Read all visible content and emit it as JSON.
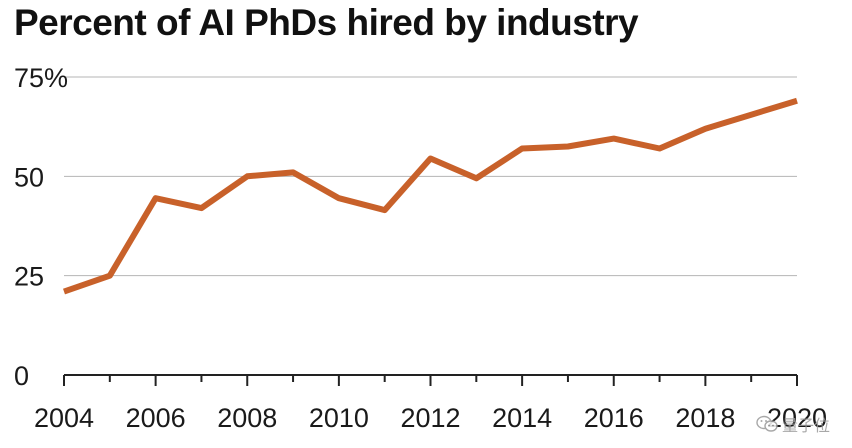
{
  "chart_data": {
    "type": "line",
    "title": "Percent of AI PhDs hired by industry",
    "xlabel": "",
    "ylabel": "",
    "x": [
      2004,
      2005,
      2006,
      2007,
      2008,
      2009,
      2010,
      2011,
      2012,
      2013,
      2014,
      2015,
      2016,
      2017,
      2018,
      2019,
      2020
    ],
    "series": [
      {
        "values": [
          21,
          25,
          44.5,
          42,
          50,
          51,
          44.5,
          41.5,
          54.5,
          49.5,
          57,
          57.5,
          59.5,
          57,
          62,
          65.5,
          69
        ]
      }
    ],
    "xlim": [
      2004,
      2020
    ],
    "ylim": [
      0,
      75
    ],
    "x_ticks": [
      "2004",
      "2006",
      "2008",
      "2010",
      "2012",
      "2014",
      "2016",
      "2018",
      "2020"
    ],
    "y_ticks": [
      {
        "value": 75,
        "label": "75%"
      },
      {
        "value": 50,
        "label": "50"
      },
      {
        "value": 25,
        "label": "25"
      },
      {
        "value": 0,
        "label": "0"
      }
    ],
    "grid": true,
    "line_color": "#c8612a",
    "grid_color": "#b5b5b5",
    "axis_color": "#222222"
  },
  "watermark": {
    "icon": "wechat-icon",
    "text": "量子位"
  }
}
